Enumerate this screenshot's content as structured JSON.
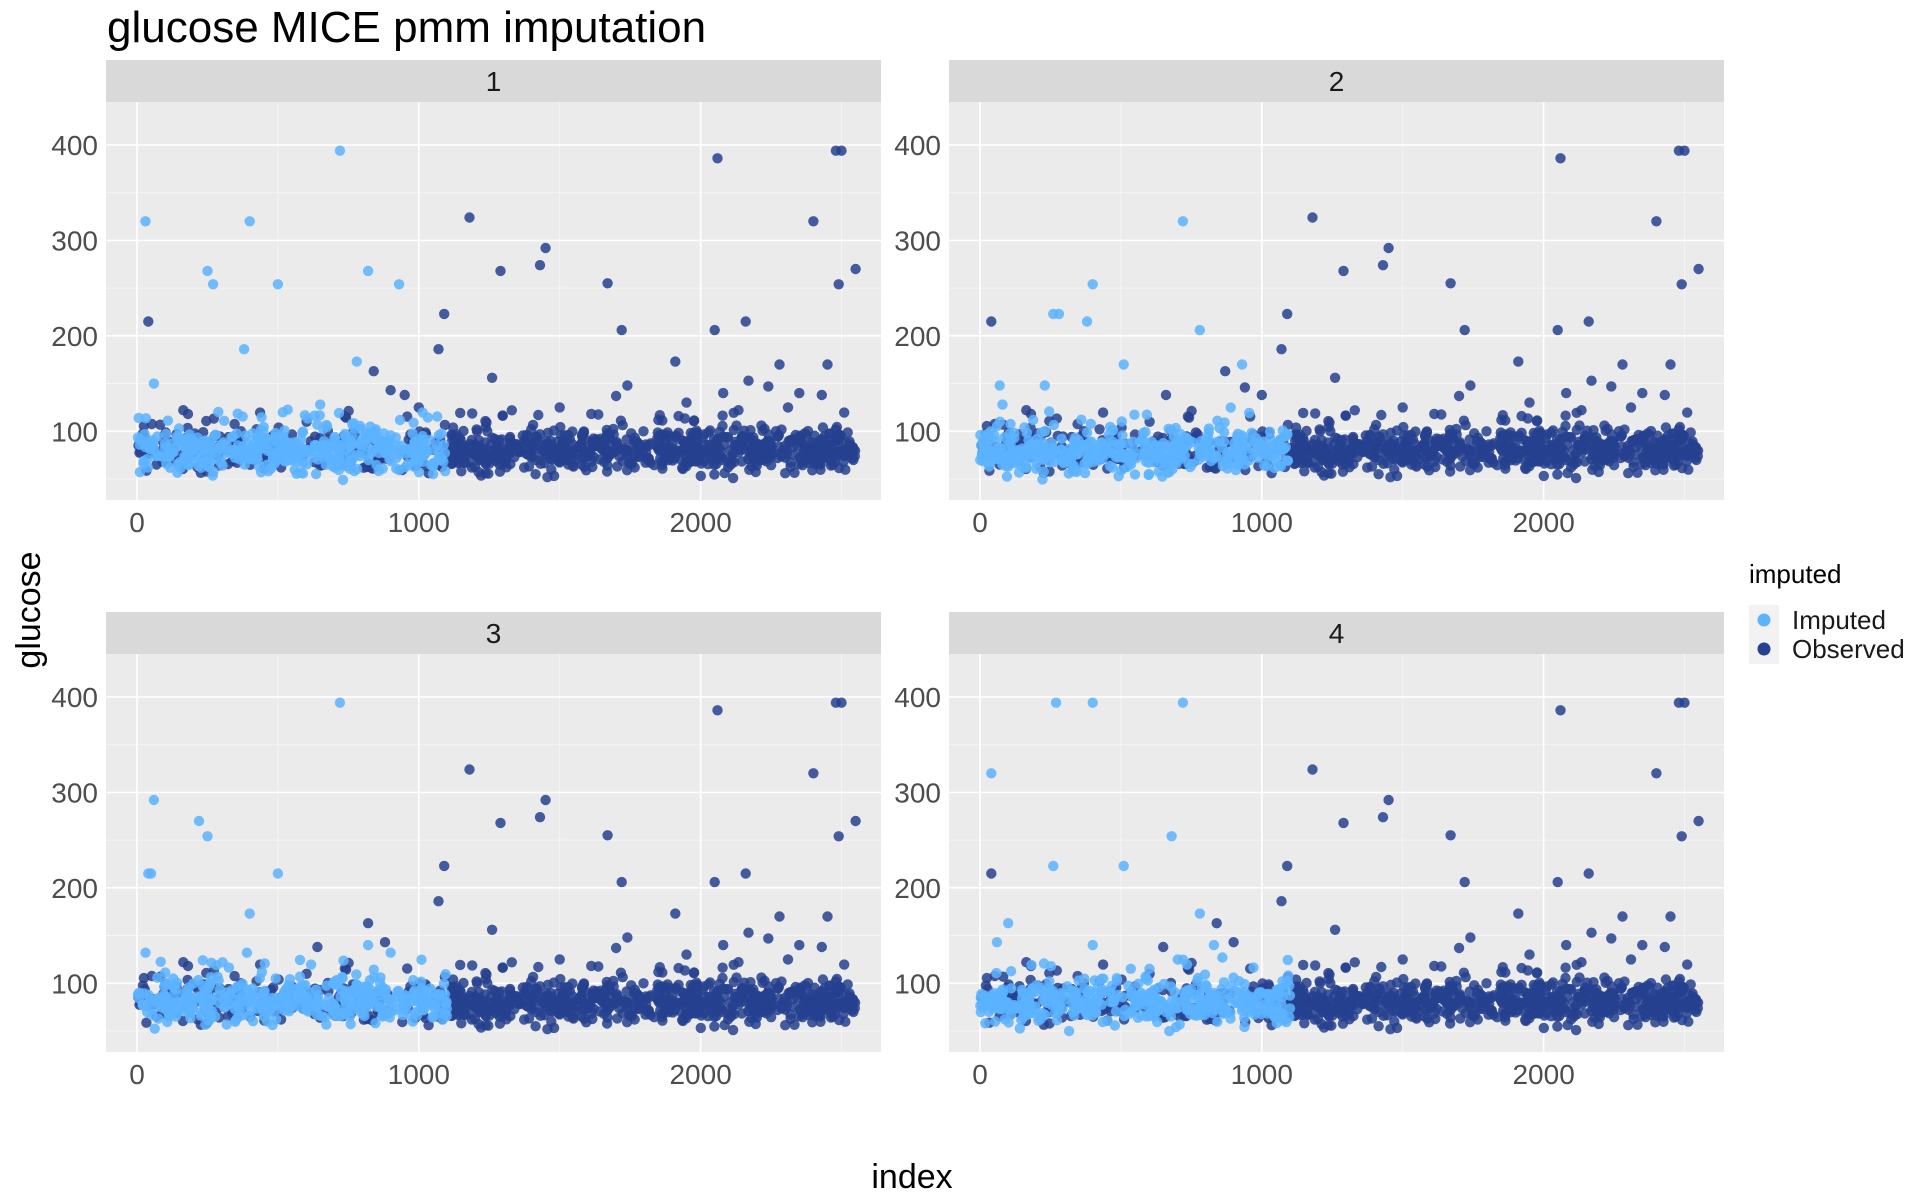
{
  "chart_data": {
    "type": "scatter",
    "title": "glucose MICE pmm imputation",
    "xlabel": "index",
    "ylabel": "glucose",
    "xlim": [
      -110,
      2640
    ],
    "ylim": [
      28,
      445
    ],
    "xticks": [
      0,
      1000,
      2000
    ],
    "yticks": [
      100,
      200,
      300,
      400
    ],
    "grid": true,
    "legend": {
      "title": "imputed",
      "position": "right",
      "entries": [
        {
          "label": "Imputed",
          "color": "#5cb3ff"
        },
        {
          "label": "Observed",
          "color": "#26418f"
        }
      ]
    },
    "facets": [
      "1",
      "2",
      "3",
      "4"
    ],
    "observed_range": [
      1100,
      2550
    ],
    "imputed_range": [
      0,
      1100
    ],
    "series_colors": {
      "Imputed": "#5cb3ff",
      "Observed": "#26418f"
    },
    "observed_outliers": [
      [
        1090,
        223
      ],
      [
        1070,
        186
      ],
      [
        1180,
        324
      ],
      [
        1290,
        268
      ],
      [
        1430,
        274
      ],
      [
        1450,
        292
      ],
      [
        1670,
        255
      ],
      [
        1720,
        206
      ],
      [
        1260,
        156
      ],
      [
        1910,
        173
      ],
      [
        2050,
        206
      ],
      [
        2060,
        386
      ],
      [
        2160,
        215
      ],
      [
        2400,
        320
      ],
      [
        2480,
        394
      ],
      [
        2500,
        394
      ],
      [
        2490,
        254
      ],
      [
        2550,
        270
      ],
      [
        2450,
        170
      ],
      [
        2280,
        170
      ],
      [
        2170,
        153
      ],
      [
        2240,
        147
      ],
      [
        1740,
        148
      ],
      [
        1950,
        130
      ],
      [
        2350,
        140
      ],
      [
        2430,
        138
      ],
      [
        1700,
        137
      ],
      [
        2080,
        140
      ],
      [
        1330,
        122
      ],
      [
        1500,
        125
      ],
      [
        2310,
        125
      ]
    ],
    "panels_extra": {
      "1": {
        "observed": [
          [
            40,
            215
          ],
          [
            840,
            163
          ],
          [
            900,
            143
          ],
          [
            950,
            138
          ],
          [
            1000,
            125
          ]
        ],
        "imputed": [
          [
            30,
            320
          ],
          [
            400,
            320
          ],
          [
            720,
            394
          ],
          [
            250,
            268
          ],
          [
            820,
            268
          ],
          [
            270,
            254
          ],
          [
            500,
            254
          ],
          [
            930,
            254
          ],
          [
            380,
            186
          ],
          [
            780,
            173
          ],
          [
            60,
            150
          ],
          [
            650,
            128
          ]
        ]
      },
      "2": {
        "observed": [
          [
            40,
            215
          ],
          [
            870,
            163
          ],
          [
            940,
            146
          ],
          [
            1000,
            138
          ],
          [
            660,
            138
          ]
        ],
        "imputed": [
          [
            720,
            320
          ],
          [
            400,
            254
          ],
          [
            260,
            223
          ],
          [
            280,
            223
          ],
          [
            380,
            215
          ],
          [
            780,
            206
          ],
          [
            510,
            170
          ],
          [
            930,
            170
          ],
          [
            230,
            148
          ],
          [
            70,
            148
          ],
          [
            80,
            128
          ]
        ]
      },
      "3": {
        "observed": [
          [
            820,
            163
          ],
          [
            880,
            143
          ],
          [
            640,
            138
          ]
        ],
        "imputed": [
          [
            720,
            394
          ],
          [
            60,
            292
          ],
          [
            220,
            270
          ],
          [
            250,
            254
          ],
          [
            40,
            215
          ],
          [
            50,
            215
          ],
          [
            500,
            215
          ],
          [
            400,
            173
          ],
          [
            820,
            140
          ],
          [
            390,
            132
          ],
          [
            30,
            132
          ],
          [
            900,
            132
          ]
        ]
      },
      "4": {
        "observed": [
          [
            40,
            215
          ],
          [
            840,
            163
          ],
          [
            900,
            143
          ],
          [
            650,
            138
          ]
        ],
        "imputed": [
          [
            270,
            394
          ],
          [
            400,
            394
          ],
          [
            720,
            394
          ],
          [
            40,
            320
          ],
          [
            680,
            254
          ],
          [
            260,
            223
          ],
          [
            510,
            223
          ],
          [
            780,
            173
          ],
          [
            100,
            163
          ],
          [
            400,
            140
          ],
          [
            60,
            143
          ],
          [
            830,
            140
          ],
          [
            860,
            127
          ]
        ]
      }
    }
  }
}
